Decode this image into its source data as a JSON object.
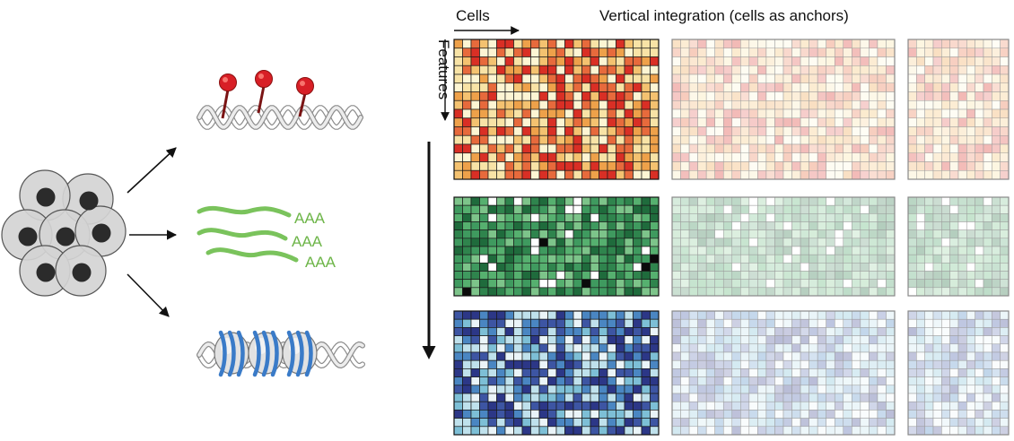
{
  "title": "Vertical integration (cells as anchors)",
  "axis_cells_label": "Cells",
  "axis_features_label": "Features",
  "rna_tail_label": "AAA",
  "colors": {
    "methylation_palette": [
      "#fdf5d3",
      "#f8e3a6",
      "#f4c270",
      "#eea14a",
      "#e76a3c",
      "#d92f25"
    ],
    "rna_palette": [
      "#1f6b3c",
      "#2f844d",
      "#3f9a5f",
      "#56b06f",
      "#7dc48a"
    ],
    "chromatin_palette": [
      "#eaf4f8",
      "#bfe1ec",
      "#7dbfd6",
      "#4a86c2",
      "#3d55a3",
      "#2c3787"
    ],
    "rna_strand": "#7ac35c",
    "rna_text": "#6db548",
    "methyl_mark": "#d81f26",
    "histone_band": "#3a7bc8",
    "cell_fill": "#d4d4d4",
    "nucleus_fill": "#2b2b2b"
  },
  "icons": [
    "cell-cluster-icon",
    "dna-methylation-icon",
    "rna-transcripts-icon",
    "chromatin-nucleosome-icon"
  ]
}
